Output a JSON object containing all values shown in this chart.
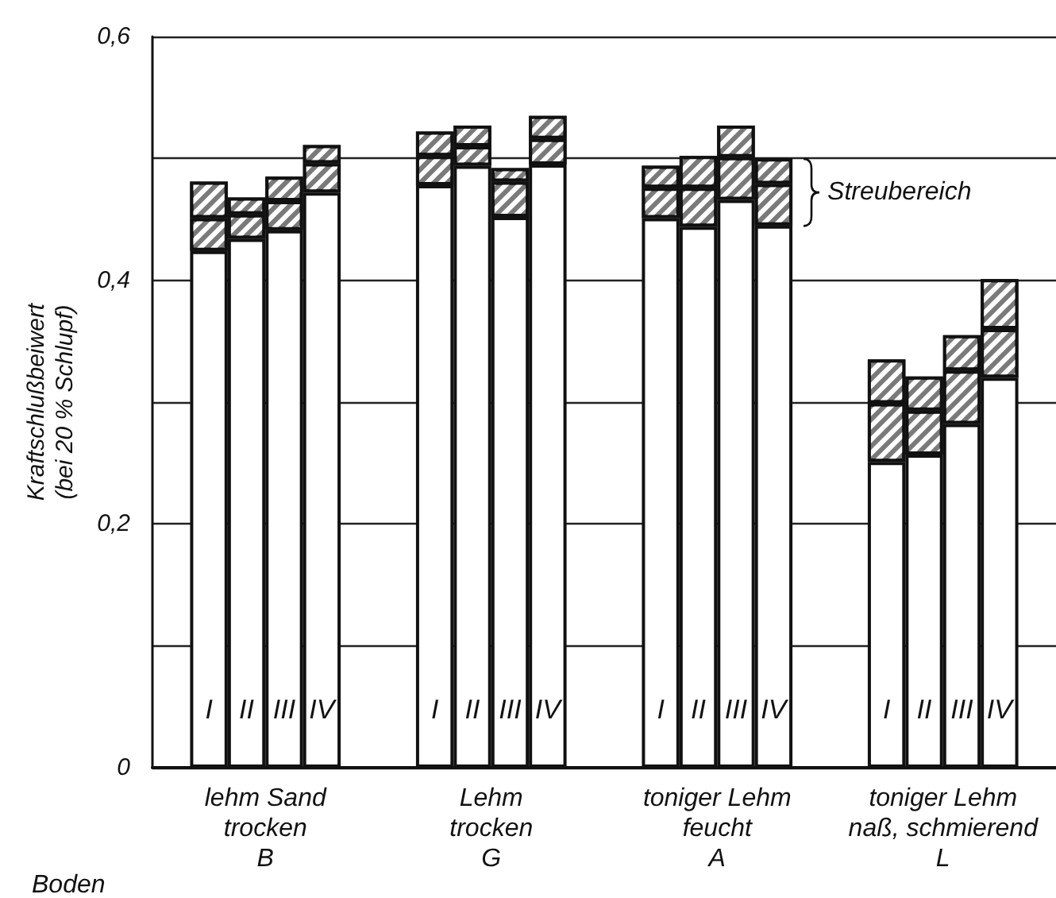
{
  "chart_data": {
    "type": "bar",
    "ylabel": "Kraftschlußbeiwert\n(bei 20 % Schlupf)",
    "categories": [
      null,
      "I",
      "II",
      "III",
      "IV",
      null,
      null,
      "I",
      "II",
      "III",
      "IV",
      null,
      null,
      "I",
      "II",
      "III",
      "IV",
      null,
      null,
      "I",
      "II",
      "III",
      "IV",
      null
    ],
    "series": [
      {
        "color": "#ffffff",
        "values": [
          null,
          0.424,
          0.434,
          0.441,
          0.472,
          null,
          null,
          0.478,
          0.494,
          0.452,
          0.495,
          null,
          null,
          0.451,
          0.444,
          0.466,
          0.445,
          null,
          null,
          0.251,
          0.257,
          0.282,
          0.32,
          null
        ]
      },
      {
        "color": "#7a7a7a",
        "values": [
          null,
          0.027,
          0.02,
          0.024,
          0.024,
          null,
          null,
          0.024,
          0.016,
          0.029,
          0.021,
          null,
          null,
          0.025,
          0.032,
          0.035,
          0.034,
          null,
          null,
          0.048,
          0.036,
          0.044,
          0.04,
          null
        ]
      },
      {
        "color": "#7a7a7a",
        "values": [
          null,
          0.03,
          0.014,
          0.02,
          0.015,
          null,
          null,
          0.02,
          0.017,
          0.011,
          0.019,
          null,
          null,
          0.018,
          0.026,
          0.026,
          0.021,
          null,
          null,
          0.036,
          0.028,
          0.029,
          0.041,
          null
        ]
      }
    ],
    "stacked": true,
    "ylim": [
      0,
      0.6
    ],
    "yticks": [
      0,
      {
        "value": 0.1,
        "label": null
      },
      {
        "value": 0.2,
        "label": "0,2"
      },
      {
        "value": 0.3,
        "label": null
      },
      {
        "value": 0.4,
        "label": "0,4"
      },
      {
        "value": 0.5,
        "label": null
      },
      {
        "value": 0.6,
        "label": "0,6"
      }
    ],
    "grid": "y",
    "annotations": [
      "Streubereich",
      "Boden",
      "lehm Sand\ntrocken\nB",
      "Lehm\ntrocken\nG",
      "toniger Lehm\nfeucht\nA",
      "toniger Lehm\nnaß, schmierend\nL"
    ]
  }
}
